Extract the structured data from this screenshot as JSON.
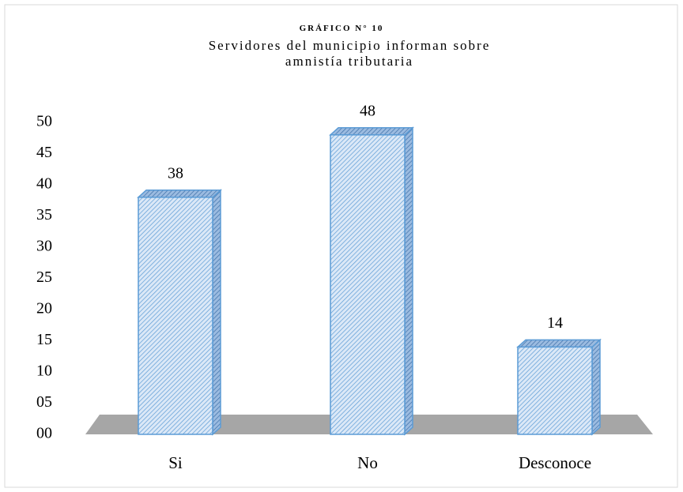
{
  "chart_data": {
    "type": "bar3d",
    "title": "GRÁFICO N° 10",
    "subtitle": "Servidores del municipio informan sobre amnistía tributaria",
    "categories": [
      "Si",
      "No",
      "Desconoce"
    ],
    "values": [
      38,
      48,
      14
    ],
    "color": "#5b9bd5",
    "ylim": [
      0,
      50
    ],
    "yticks": [
      {
        "value": 0,
        "label": "00"
      },
      {
        "value": 5,
        "label": "05"
      },
      10,
      15,
      20,
      25,
      30,
      35,
      40,
      45,
      50
    ],
    "grid": false
  }
}
